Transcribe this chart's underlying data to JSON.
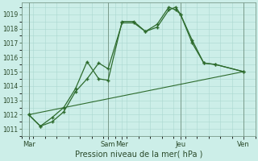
{
  "xlabel": "Pression niveau de la mer( hPa )",
  "bg_color": "#cceee8",
  "grid_color": "#aad8d0",
  "line_color": "#2d6b2d",
  "ylim": [
    1010.5,
    1019.8
  ],
  "xlim": [
    0,
    10
  ],
  "day_labels": [
    "Mar",
    "Sam",
    "Mer",
    "Jeu",
    "Ven"
  ],
  "day_positions": [
    0.3,
    3.7,
    4.3,
    6.8,
    9.5
  ],
  "yticks": [
    1011,
    1012,
    1013,
    1014,
    1015,
    1016,
    1017,
    1018,
    1019
  ],
  "vline_positions": [
    0.3,
    3.7,
    6.8,
    9.5
  ],
  "line1_x": [
    0.3,
    0.8,
    1.3,
    1.8,
    2.3,
    2.8,
    3.3,
    3.7,
    4.3,
    4.8,
    5.3,
    5.8,
    6.3,
    6.6,
    6.8,
    7.3,
    7.8,
    8.3,
    9.5
  ],
  "line1_y": [
    1012.0,
    1011.2,
    1011.5,
    1012.2,
    1013.6,
    1014.5,
    1015.6,
    1015.2,
    1018.4,
    1018.4,
    1017.8,
    1018.1,
    1019.3,
    1019.5,
    1019.0,
    1017.2,
    1015.6,
    1015.5,
    1015.0
  ],
  "line2_x": [
    0.3,
    0.8,
    1.3,
    1.8,
    2.3,
    2.8,
    3.3,
    3.7,
    4.3,
    4.8,
    5.3,
    5.8,
    6.3,
    6.6,
    6.8,
    7.3,
    7.8,
    8.3,
    9.5
  ],
  "line2_y": [
    1012.0,
    1011.2,
    1011.8,
    1012.5,
    1013.8,
    1015.7,
    1014.5,
    1014.4,
    1018.5,
    1018.5,
    1017.8,
    1018.3,
    1019.5,
    1019.3,
    1019.0,
    1017.0,
    1015.6,
    1015.5,
    1015.0
  ],
  "line3_x": [
    0.3,
    9.5
  ],
  "line3_y": [
    1012.0,
    1015.0
  ]
}
